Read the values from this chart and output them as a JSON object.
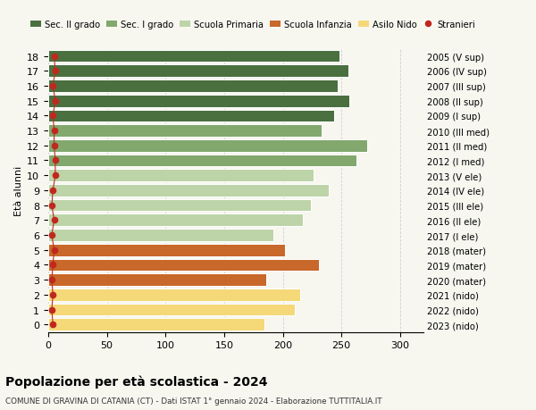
{
  "ages": [
    18,
    17,
    16,
    15,
    14,
    13,
    12,
    11,
    10,
    9,
    8,
    7,
    6,
    5,
    4,
    3,
    2,
    1,
    0
  ],
  "values": [
    248,
    256,
    247,
    257,
    244,
    233,
    272,
    263,
    226,
    239,
    224,
    217,
    192,
    202,
    231,
    186,
    215,
    210,
    184
  ],
  "stranieri": [
    5,
    6,
    4,
    6,
    4,
    5,
    5,
    6,
    6,
    4,
    3,
    5,
    3,
    5,
    4,
    3,
    4,
    3,
    4
  ],
  "right_labels": [
    "2005 (V sup)",
    "2006 (IV sup)",
    "2007 (III sup)",
    "2008 (II sup)",
    "2009 (I sup)",
    "2010 (III med)",
    "2011 (II med)",
    "2012 (I med)",
    "2013 (V ele)",
    "2014 (IV ele)",
    "2015 (III ele)",
    "2016 (II ele)",
    "2017 (I ele)",
    "2018 (mater)",
    "2019 (mater)",
    "2020 (mater)",
    "2021 (nido)",
    "2022 (nido)",
    "2023 (nido)"
  ],
  "colors": {
    "Sec. II grado": "#4a7040",
    "Sec. I grado": "#82a86e",
    "Scuola Primaria": "#bdd4a8",
    "Scuola Infanzia": "#c8682a",
    "Asilo Nido": "#f5d878",
    "Stranieri": "#c0281e"
  },
  "bar_colors": [
    "#4a7040",
    "#4a7040",
    "#4a7040",
    "#4a7040",
    "#4a7040",
    "#82a86e",
    "#82a86e",
    "#82a86e",
    "#bdd4a8",
    "#bdd4a8",
    "#bdd4a8",
    "#bdd4a8",
    "#bdd4a8",
    "#c8682a",
    "#c8682a",
    "#c8682a",
    "#f5d878",
    "#f5d878",
    "#f5d878"
  ],
  "title": "Popolazione per età scolastica - 2024",
  "subtitle": "COMUNE DI GRAVINA DI CATANIA (CT) - Dati ISTAT 1° gennaio 2024 - Elaborazione TUTTITALIA.IT",
  "xlabel_left": "Età alunni",
  "xlim": [
    0,
    320
  ],
  "xticks": [
    0,
    50,
    100,
    150,
    200,
    250,
    300
  ],
  "background_color": "#f7f7f0",
  "grid_color": "#d0d0d0"
}
